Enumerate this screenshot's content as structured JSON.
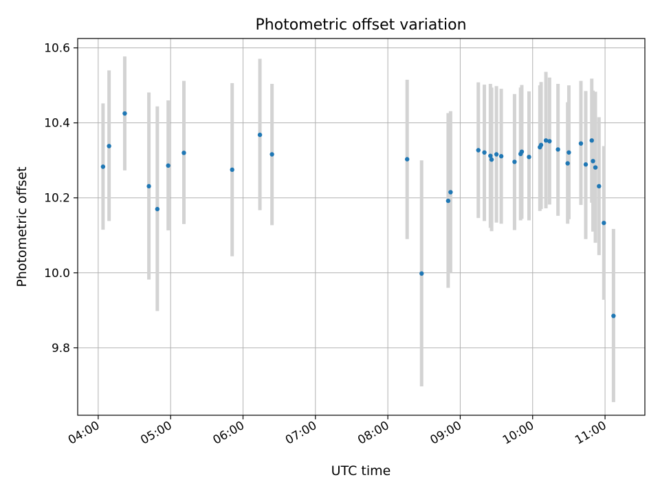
{
  "chart_data": {
    "type": "scatter",
    "title": "Photometric offset variation",
    "xlabel": "UTC time",
    "ylabel": "Photometric offset",
    "xlim": [
      "03:43",
      "11:33"
    ],
    "ylim": [
      9.62,
      10.625
    ],
    "x_ticks": [
      "04:00",
      "05:00",
      "06:00",
      "07:00",
      "08:00",
      "09:00",
      "10:00",
      "11:00"
    ],
    "y_ticks": [
      9.8,
      10.0,
      10.2,
      10.4,
      10.6
    ],
    "y_tick_labels": [
      "9.8",
      "10.0",
      "10.2",
      "10.4",
      "10.6"
    ],
    "grid": true,
    "point_color": "#1f77b4",
    "errorbar_color": "#d3d3d3",
    "points": [
      {
        "time": "04:04",
        "y": 10.283,
        "low": 10.115,
        "high": 10.452
      },
      {
        "time": "04:09",
        "y": 10.338,
        "low": 10.138,
        "high": 10.54
      },
      {
        "time": "04:22",
        "y": 10.425,
        "low": 10.273,
        "high": 10.577
      },
      {
        "time": "04:42",
        "y": 10.231,
        "low": 9.982,
        "high": 10.481
      },
      {
        "time": "04:49",
        "y": 10.17,
        "low": 9.898,
        "high": 10.444
      },
      {
        "time": "04:58",
        "y": 10.286,
        "low": 10.113,
        "high": 10.46
      },
      {
        "time": "05:11",
        "y": 10.32,
        "low": 10.13,
        "high": 10.512
      },
      {
        "time": "05:51",
        "y": 10.275,
        "low": 10.044,
        "high": 10.506
      },
      {
        "time": "06:14",
        "y": 10.368,
        "low": 10.167,
        "high": 10.571
      },
      {
        "time": "06:24",
        "y": 10.316,
        "low": 10.127,
        "high": 10.504
      },
      {
        "time": "08:16",
        "y": 10.303,
        "low": 10.09,
        "high": 10.515
      },
      {
        "time": "08:28",
        "y": 9.998,
        "low": 9.697,
        "high": 10.3
      },
      {
        "time": "08:50",
        "y": 10.192,
        "low": 9.96,
        "high": 10.426
      },
      {
        "time": "08:52",
        "y": 10.215,
        "low": 10.0,
        "high": 10.431
      },
      {
        "time": "09:15",
        "y": 10.327,
        "low": 10.146,
        "high": 10.508
      },
      {
        "time": "09:20",
        "y": 10.321,
        "low": 10.138,
        "high": 10.502
      },
      {
        "time": "09:25",
        "y": 10.312,
        "low": 10.12,
        "high": 10.504
      },
      {
        "time": "09:26",
        "y": 10.302,
        "low": 10.111,
        "high": 10.494
      },
      {
        "time": "09:30",
        "y": 10.316,
        "low": 10.134,
        "high": 10.498
      },
      {
        "time": "09:34",
        "y": 10.311,
        "low": 10.131,
        "high": 10.491
      },
      {
        "time": "09:45",
        "y": 10.296,
        "low": 10.114,
        "high": 10.477
      },
      {
        "time": "09:50",
        "y": 10.317,
        "low": 10.14,
        "high": 10.494
      },
      {
        "time": "09:51",
        "y": 10.323,
        "low": 10.144,
        "high": 10.501
      },
      {
        "time": "09:57",
        "y": 10.309,
        "low": 10.14,
        "high": 10.484
      },
      {
        "time": "10:06",
        "y": 10.335,
        "low": 10.165,
        "high": 10.5
      },
      {
        "time": "10:07",
        "y": 10.341,
        "low": 10.17,
        "high": 10.509
      },
      {
        "time": "10:11",
        "y": 10.353,
        "low": 10.172,
        "high": 10.536
      },
      {
        "time": "10:14",
        "y": 10.351,
        "low": 10.182,
        "high": 10.521
      },
      {
        "time": "10:21",
        "y": 10.329,
        "low": 10.152,
        "high": 10.504
      },
      {
        "time": "10:29",
        "y": 10.292,
        "low": 10.131,
        "high": 10.455
      },
      {
        "time": "10:30",
        "y": 10.321,
        "low": 10.143,
        "high": 10.5
      },
      {
        "time": "10:40",
        "y": 10.345,
        "low": 10.181,
        "high": 10.512
      },
      {
        "time": "10:44",
        "y": 10.289,
        "low": 10.09,
        "high": 10.485
      },
      {
        "time": "10:49",
        "y": 10.353,
        "low": 10.187,
        "high": 10.518
      },
      {
        "time": "10:50",
        "y": 10.298,
        "low": 10.11,
        "high": 10.486
      },
      {
        "time": "10:52",
        "y": 10.281,
        "low": 10.08,
        "high": 10.483
      },
      {
        "time": "10:55",
        "y": 10.231,
        "low": 10.047,
        "high": 10.415
      },
      {
        "time": "10:59",
        "y": 10.133,
        "low": 9.928,
        "high": 10.338
      },
      {
        "time": "11:07",
        "y": 9.885,
        "low": 9.655,
        "high": 10.117
      }
    ]
  }
}
